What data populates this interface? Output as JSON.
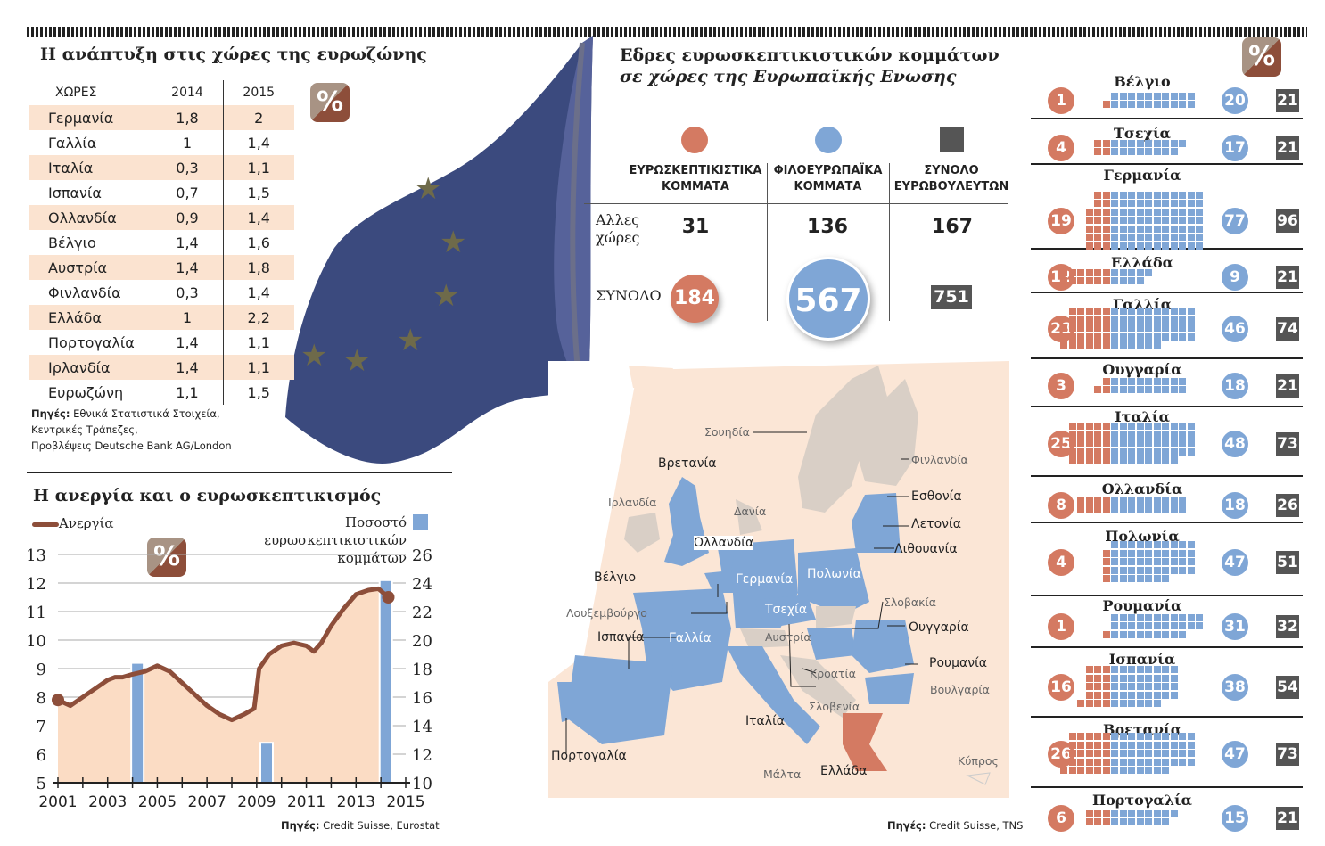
{
  "growth": {
    "title": "Η ανάπτυξη στις χώρες της ευρωζώνης",
    "headers": [
      "ΧΩΡΕΣ",
      "2014",
      "2015"
    ],
    "badge": "%",
    "rows": [
      [
        "Γερμανία",
        "1,8",
        "2"
      ],
      [
        "Γαλλία",
        "1",
        "1,4"
      ],
      [
        "Ιταλία",
        "0,3",
        "1,1"
      ],
      [
        "Ισπανία",
        "0,7",
        "1,5"
      ],
      [
        "Ολλανδία",
        "0,9",
        "1,4"
      ],
      [
        "Βέλγιο",
        "1,4",
        "1,6"
      ],
      [
        "Αυστρία",
        "1,4",
        "1,8"
      ],
      [
        "Φινλανδία",
        "0,3",
        "1,4"
      ],
      [
        "Ελλάδα",
        "1",
        "2,2"
      ],
      [
        "Πορτογαλία",
        "1,4",
        "1,1"
      ],
      [
        "Ιρλανδία",
        "1,4",
        "1,1"
      ],
      [
        "Ευρωζώνη",
        "1,1",
        "1,5"
      ]
    ],
    "source_label": "Πηγές:",
    "source": [
      "Εθνικά Στατιστικά Στοιχεία,",
      "Κεντρικές Τράπεζες,",
      "Προβλέψεις Deutsche Bank AG/London"
    ]
  },
  "chart_data": {
    "type": "line+bar",
    "title": "Η ανεργία και ο ευρωσκεπτικισμός",
    "badge": "%",
    "xlim": [
      2001,
      2015
    ],
    "xticks": [
      "2001",
      "2003",
      "2005",
      "2007",
      "2009",
      "2011",
      "2013",
      "2015"
    ],
    "ylim_left": [
      5,
      13
    ],
    "yticks_left": [
      "5",
      "6",
      "7",
      "8",
      "9",
      "10",
      "11",
      "12",
      "13"
    ],
    "ylim_right": [
      10,
      26
    ],
    "yticks_right": [
      "10",
      "12",
      "14",
      "16",
      "18",
      "20",
      "22",
      "24",
      "26"
    ],
    "grid": true,
    "series": [
      {
        "name": "Ανεργία",
        "type": "area-line",
        "axis": "left",
        "color": "#8d4e3a",
        "x": [
          2001,
          2001.5,
          2002,
          2002.5,
          2003,
          2003.3,
          2003.6,
          2004,
          2004.5,
          2005,
          2005.5,
          2006,
          2006.5,
          2007,
          2007.5,
          2008,
          2008.5,
          2008.9,
          2009.1,
          2009.5,
          2010,
          2010.5,
          2011,
          2011.3,
          2011.6,
          2012,
          2012.5,
          2013,
          2013.5,
          2013.9,
          2014.3
        ],
        "y": [
          7.9,
          7.7,
          8.0,
          8.3,
          8.6,
          8.7,
          8.7,
          8.8,
          8.9,
          9.1,
          8.9,
          8.5,
          8.1,
          7.7,
          7.4,
          7.2,
          7.4,
          7.6,
          9.0,
          9.5,
          9.8,
          9.9,
          9.8,
          9.6,
          9.9,
          10.5,
          11.1,
          11.6,
          11.75,
          11.8,
          11.5
        ]
      },
      {
        "name": "Ποσοστό ευρωσκεπτικιστικών κομμάτων",
        "type": "bar",
        "axis": "right",
        "color": "#7fa6d6",
        "x": [
          2004.2,
          2009.4,
          2014.2
        ],
        "y": [
          18.4,
          12.8,
          24.2
        ]
      }
    ],
    "source_label": "Πηγές:",
    "source": "Credit Suisse, Eurostat"
  },
  "seats": {
    "title": [
      "Εδρες ευρωσκεπτικιστικών κομμάτων",
      "σε χώρες της Ευρωπαϊκής Ενωσης"
    ],
    "col_headers": [
      [
        "ΕΥΡΩΣΚΕΠΤΙΚΙΣΤΙΚΑ",
        "ΚΟΜΜΑΤΑ"
      ],
      [
        "ΦΙΛΟΕΥΡΩΠΑΪΚΑ",
        "ΚΟΜΜΑΤΑ"
      ],
      [
        "ΣΥΝΟΛΟ",
        "ΕΥΡΩΒΟΥΛΕΥΤΩΝ"
      ]
    ],
    "other_label": [
      "Αλλες",
      "χώρες"
    ],
    "other": [
      "31",
      "136",
      "167"
    ],
    "total_label": "ΣΥΝΟΛΟ",
    "total": [
      "184",
      "567",
      "751"
    ],
    "colors": {
      "eurosceptic": "#d47a62",
      "proeuropean": "#7fa6d6",
      "total": "#555555"
    },
    "source_label": "Πηγές:",
    "source": "Credit Suisse, TNS"
  },
  "map": {
    "labels": [
      "Σουηδία",
      "Φινλανδία",
      "Βρετανία",
      "Ιρλανδία",
      "Δανία",
      "Εσθονία",
      "Λετονία",
      "Λιθουανία",
      "Ολλανδία",
      "Βέλγιο",
      "Γερμανία",
      "Πολωνία",
      "Λουξεμβούργο",
      "Τσεχία",
      "Σλοβακία",
      "Ισπανία",
      "Γαλλία",
      "Αυστρία",
      "Ουγγαρία",
      "Ρουμανία",
      "Κροατία",
      "Βουλγαρία",
      "Σλοβενία",
      "Πορτογαλία",
      "Ιταλία",
      "Κύπρος",
      "Μάλτα",
      "Ελλάδα"
    ]
  },
  "countries": {
    "badge": "%",
    "items": [
      {
        "name": "Βέλγιο",
        "eurosceptic": 1,
        "proeuropean": 20,
        "total": 21
      },
      {
        "name": "Τσεχία",
        "eurosceptic": 4,
        "proeuropean": 17,
        "total": 21
      },
      {
        "name": "Γερμανία",
        "eurosceptic": 19,
        "proeuropean": 77,
        "total": 96
      },
      {
        "name": "Ελλάδα",
        "eurosceptic": 12,
        "proeuropean": 9,
        "total": 21
      },
      {
        "name": "Γαλλία",
        "eurosceptic": 28,
        "proeuropean": 46,
        "total": 74
      },
      {
        "name": "Ουγγαρία",
        "eurosceptic": 3,
        "proeuropean": 18,
        "total": 21
      },
      {
        "name": "Ιταλία",
        "eurosceptic": 25,
        "proeuropean": 48,
        "total": 73
      },
      {
        "name": "Ολλανδία",
        "eurosceptic": 8,
        "proeuropean": 18,
        "total": 26
      },
      {
        "name": "Πολωνία",
        "eurosceptic": 4,
        "proeuropean": 47,
        "total": 51
      },
      {
        "name": "Ρουμανία",
        "eurosceptic": 1,
        "proeuropean": 31,
        "total": 32
      },
      {
        "name": "Ισπανία",
        "eurosceptic": 16,
        "proeuropean": 38,
        "total": 54
      },
      {
        "name": "Βρετανία",
        "eurosceptic": 26,
        "proeuropean": 47,
        "total": 73
      },
      {
        "name": "Πορτογαλία",
        "eurosceptic": 6,
        "proeuropean": 15,
        "total": 21
      }
    ]
  }
}
